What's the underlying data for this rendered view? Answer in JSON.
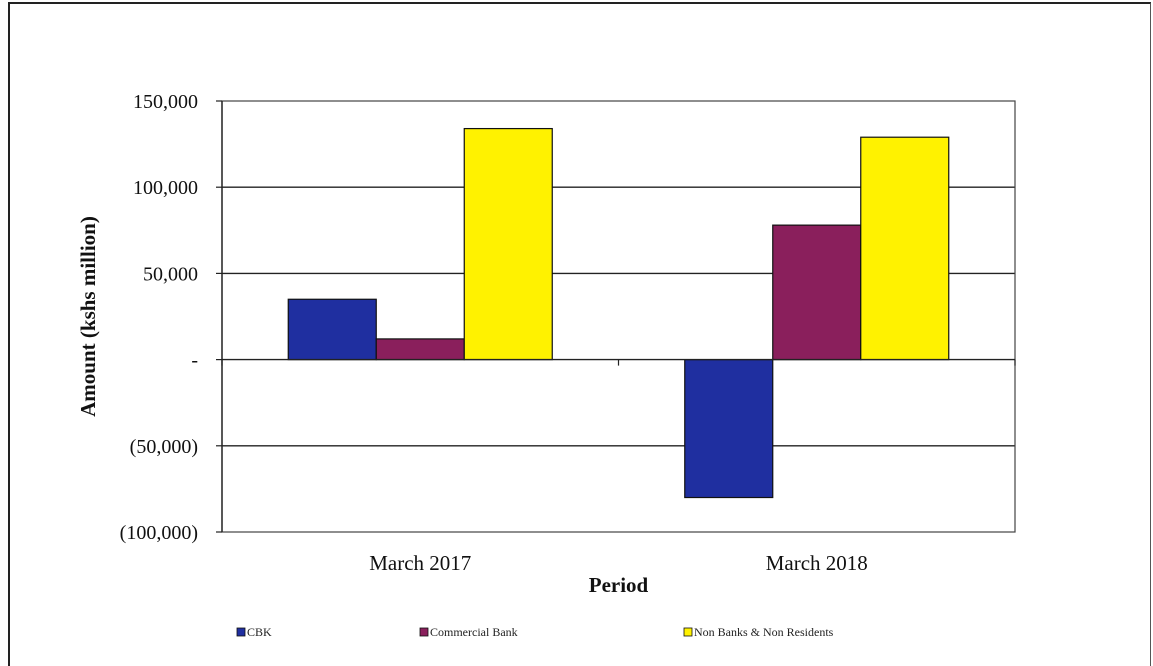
{
  "chart_data": {
    "type": "bar",
    "title": "",
    "xlabel": "Period",
    "ylabel": "Amount  (kshs million)",
    "categories": [
      "March 2017",
      "March 2018"
    ],
    "series": [
      {
        "name": "CBK",
        "values": [
          35000,
          -80000
        ],
        "color": "#1f2fa0"
      },
      {
        "name": "Commercial Bank",
        "values": [
          12000,
          78000
        ],
        "color": "#8a1f5c"
      },
      {
        "name": "Non Banks & Non Residents",
        "values": [
          134000,
          129000
        ],
        "color": "#fff200"
      }
    ],
    "ylim": [
      -100000,
      150000
    ],
    "yticks": [
      150000,
      100000,
      50000,
      0,
      -50000,
      -100000
    ],
    "ytick_labels": [
      "150,000",
      "100,000",
      "50,000",
      "-",
      "(50,000)",
      "(100,000)"
    ],
    "grid": true,
    "legend_position": "bottom"
  }
}
